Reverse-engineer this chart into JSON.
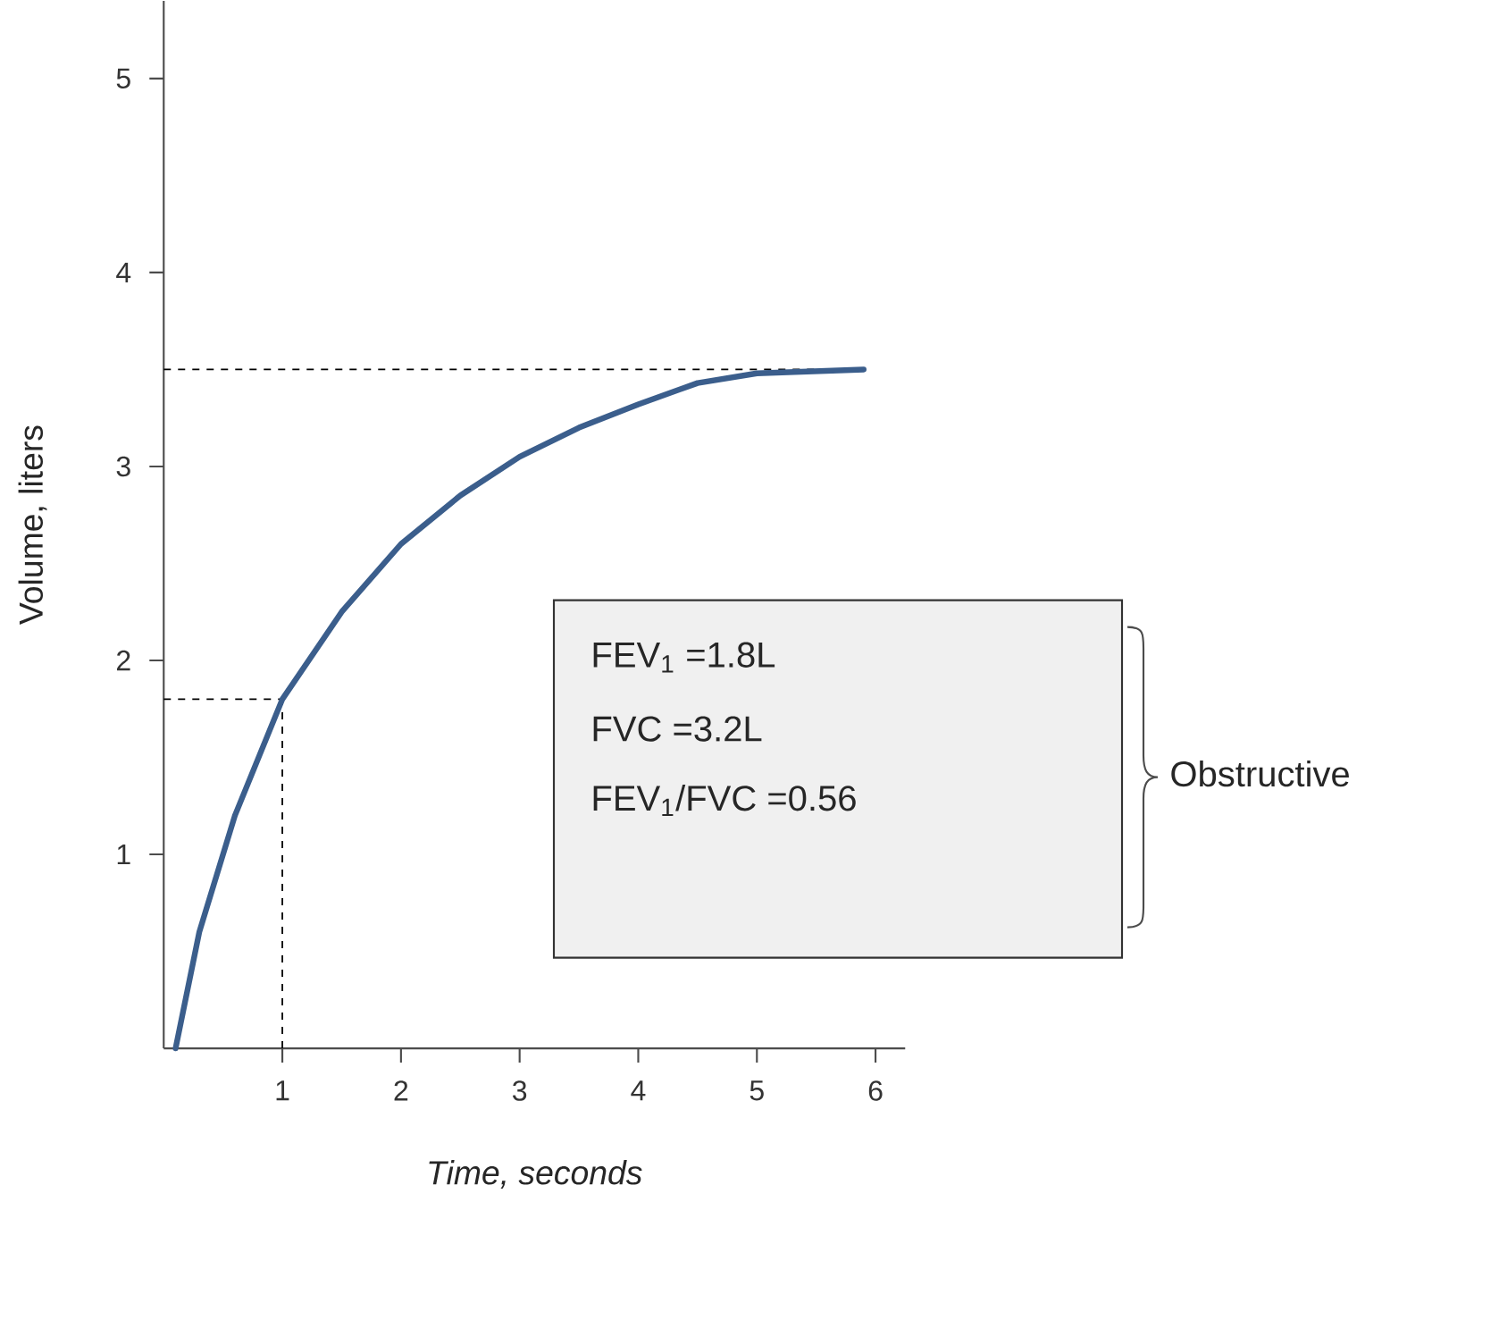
{
  "chart_data": {
    "type": "line",
    "xlabel": "Time, seconds",
    "ylabel": "Volume, liters",
    "x": [
      0.1,
      0.3,
      0.6,
      1,
      1.5,
      2,
      2.5,
      3,
      3.5,
      4,
      4.5,
      5,
      5.9
    ],
    "series": [
      {
        "color": "#3b5e8c",
        "values": [
          0,
          0.6,
          1.2,
          1.8,
          2.25,
          2.6,
          2.85,
          3.05,
          3.2,
          3.32,
          3.43,
          3.48,
          3.5
        ]
      }
    ],
    "xlim": [
      0,
      6.25
    ],
    "ylim": [
      0,
      5.4
    ],
    "xticks": [
      1,
      2,
      3,
      4,
      5,
      6
    ],
    "yticks": [
      1,
      2,
      3,
      4,
      5
    ],
    "ref_lines": [
      {
        "axis": "y",
        "value": 3.5,
        "line_style": "dashed"
      },
      {
        "axis": "y",
        "value": 1.8,
        "line_style": "dashed"
      },
      {
        "axis": "x",
        "value": 1,
        "line_style": "dashed"
      }
    ],
    "annotations": [
      "FEV$_{1}$ =1.8L",
      "FVC =3.2L",
      "FEV$_{1}$/FVC =0.56",
      "Obstructive"
    ],
    "marker": "none",
    "line_style": "solid"
  }
}
